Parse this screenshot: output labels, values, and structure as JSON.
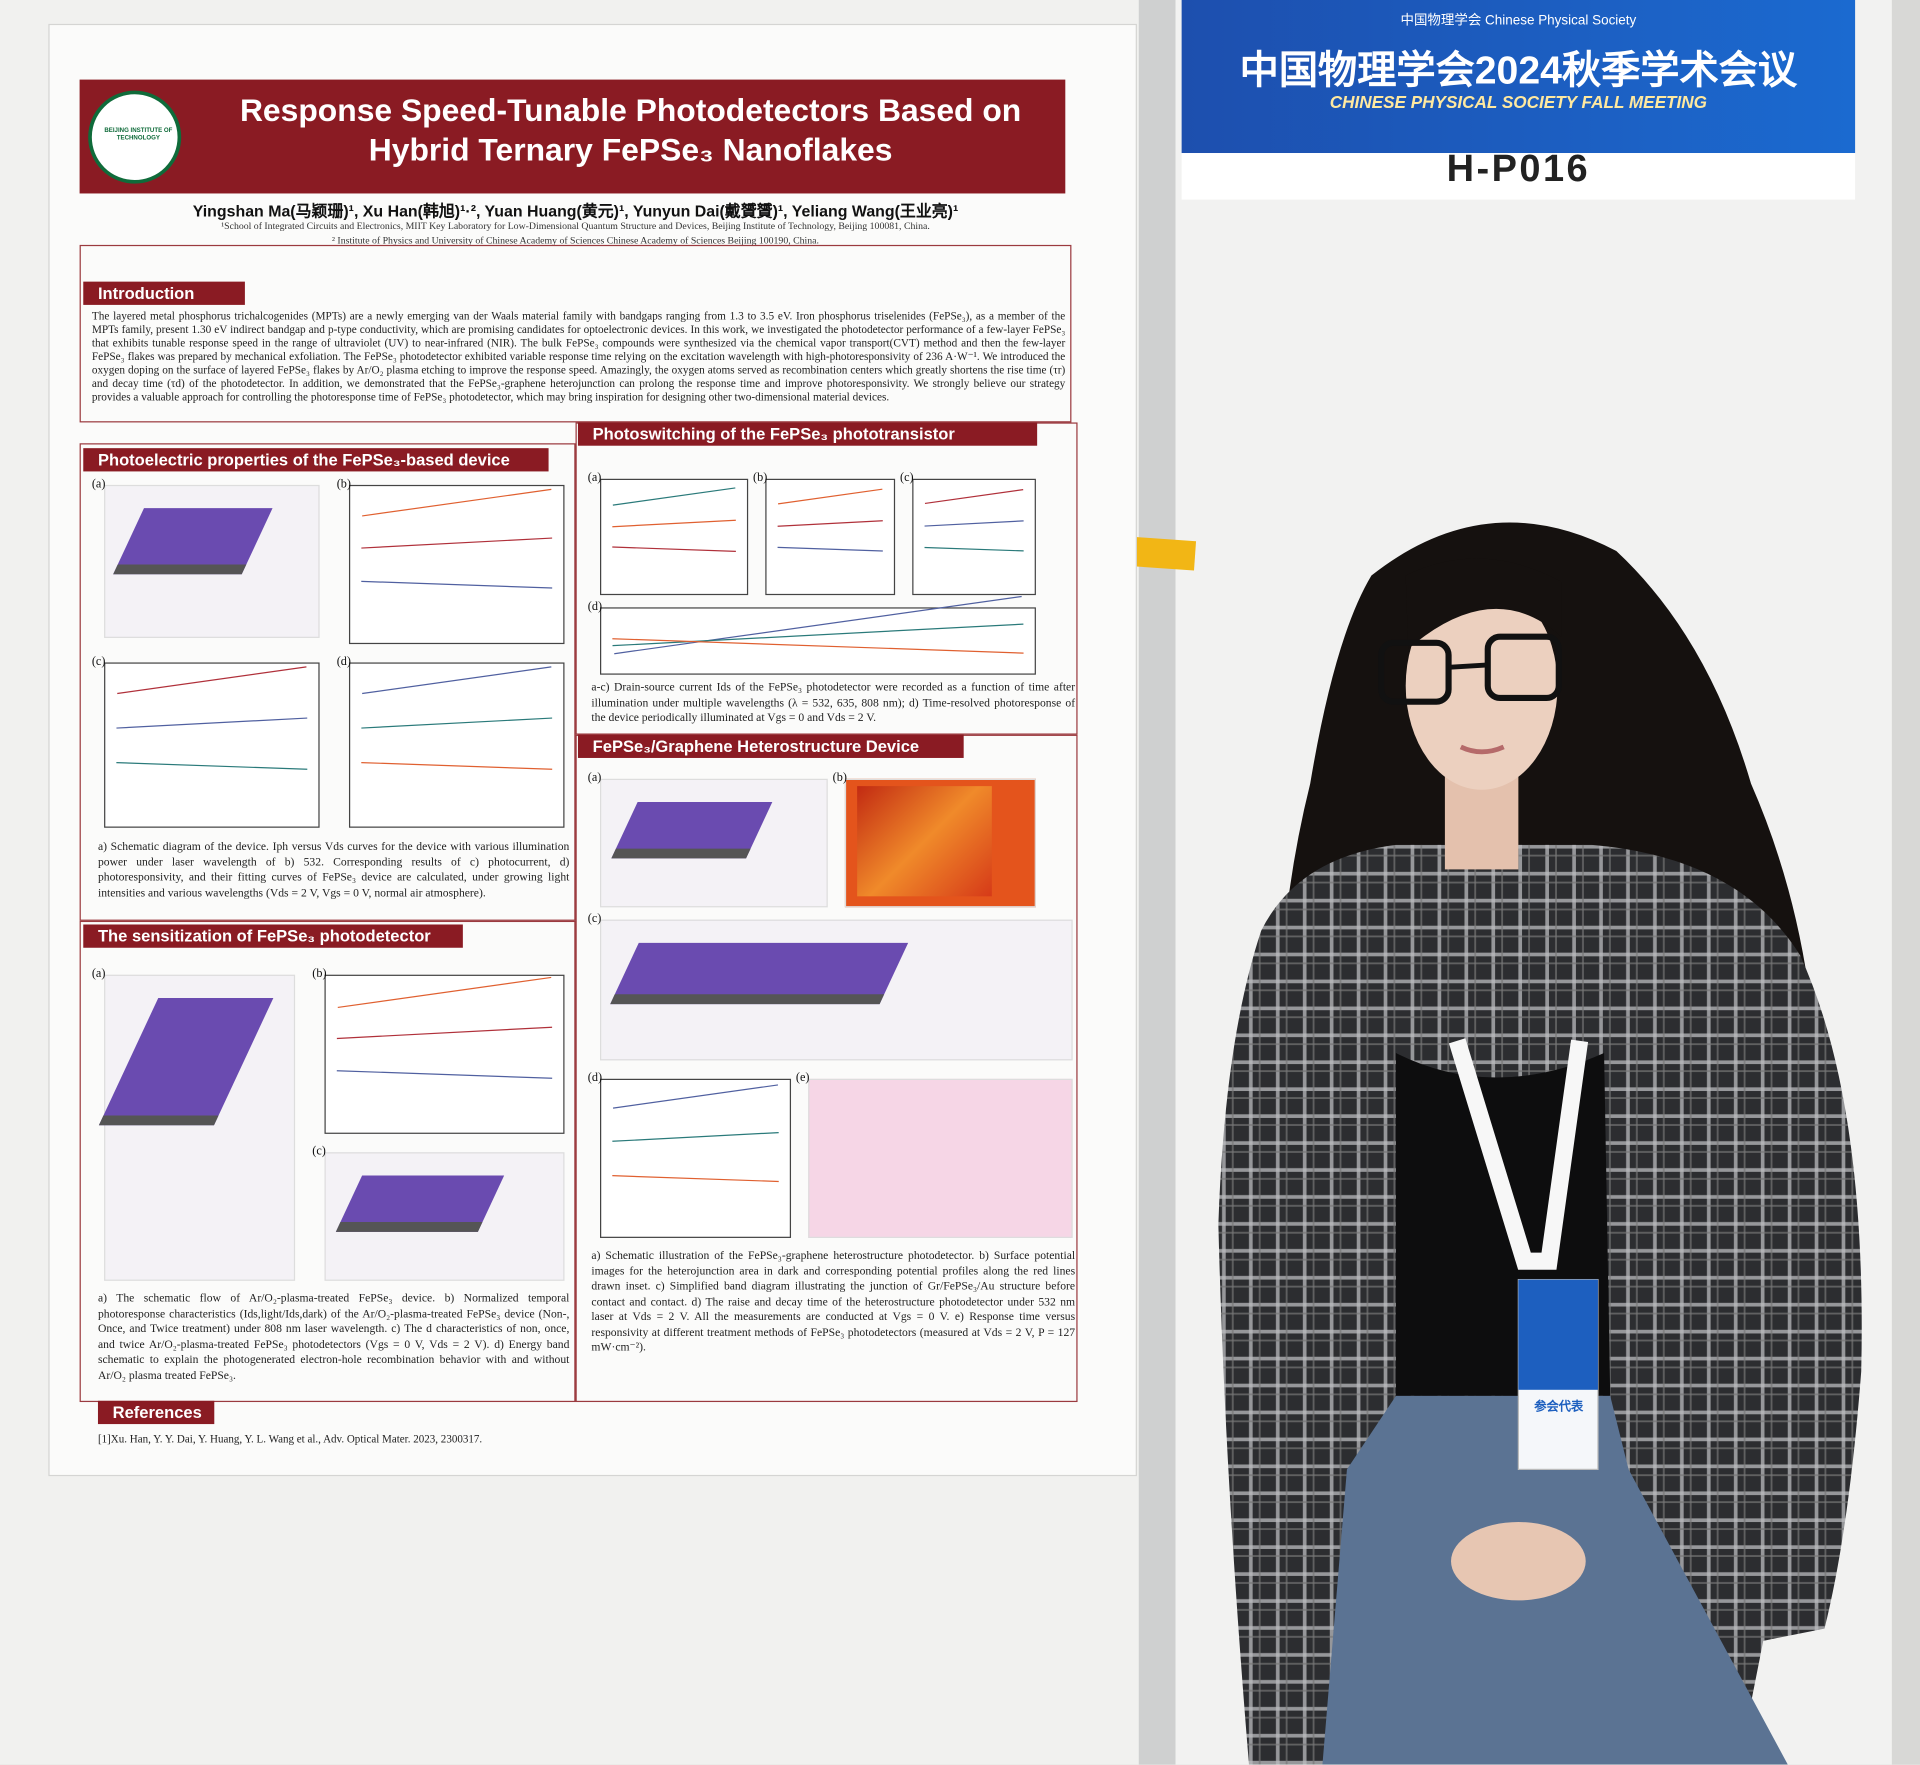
{
  "poster": {
    "title": "Response Speed-Tunable Photodetectors Based on Hybrid Ternary FePSe₃ Nanoflakes",
    "logo_text": "BEIJING INSTITUTE OF TECHNOLOGY",
    "authors": "Yingshan Ma(马颖珊)¹, Xu Han(韩旭)¹·², Yuan Huang(黄元)¹, Yunyun Dai(戴贇贇)¹, Yeliang Wang(王业亮)¹",
    "affiliations": [
      "¹School of Integrated Circuits and Electronics, MIIT Key Laboratory for Low-Dimensional Quantum Structure and Devices, Beijing Institute of Technology, Beijing 100081, China.",
      "² Institute of Physics and University of Chinese Academy of Sciences Chinese Academy of Sciences Beijing 100190, China."
    ],
    "sections": [
      {
        "heading": "Introduction",
        "text": "The layered metal phosphorus trichalcogenides (MPTs) are a newly emerging van der Waals material family with bandgaps ranging from 1.3 to 3.5 eV. Iron phosphorus triselenides (FePSe₃), as a member of the MPTs family, present 1.30 eV indirect bandgap and p-type conductivity, which are promising candidates for optoelectronic devices. In this work, we investigated the photodetector performance of a few-layer FePSe₃ that exhibits tunable response speed in the range of ultraviolet (UV) to near-infrared (NIR). The bulk FePSe₃ compounds were synthesized via the chemical vapor transport(CVT) method and then the few-layer FePSe₃ flakes was prepared by mechanical exfoliation. The FePSe₃ photodetector exhibited variable response time relying on the excitation wavelength with high-photoresponsivity of 236 A·W⁻¹. We introduced the oxygen doping on the surface of layered FePSe₃ flakes by Ar/O₂ plasma etching to improve the response speed. Amazingly, the oxygen atoms served as recombination centers which greatly shortens the rise time (τr) and decay time (τd) of the photodetector. In addition, we demonstrated that the FePSe₃-graphene heterojunction can prolong the response time and improve photoresponsivity. We strongly believe our strategy provides a valuable approach for controlling the photoresponse time of FePSe₃ photodetector, which may bring inspiration for designing other two-dimensional material devices."
      },
      {
        "heading": "Photoelectric properties of the FePSe₃-based device",
        "panels": [
          "(a)",
          "(b)",
          "(c)",
          "(d)"
        ],
        "caption": "a) Schematic diagram of the device. Iph versus Vds curves for the device with various illumination power under laser wavelength of b) 532. Corresponding results of c) photocurrent, d) photoresponsivity, and their fitting curves of FePSe₃ device are calculated, under growing light intensities and various wavelengths (Vds = 2 V, Vgs = 0 V, normal air atmosphere)."
      },
      {
        "heading": "The sensitization of FePSe₃ photodetector",
        "panels": [
          "(a)",
          "(b)",
          "(c)"
        ],
        "caption": "a) The schematic flow of Ar/O₂-plasma-treated FePSe₃ device. b) Normalized temporal photoresponse characteristics (Ids,light/Ids,dark) of the Ar/O₂-plasma-treated FePSe₃ device (Non-, Once, and Twice treatment) under 808 nm laser wavelength. c) The d characteristics of non, once, and twice Ar/O₂-plasma-treated FePSe₃ photodetectors (Vgs = 0 V, Vds = 2 V). d) Energy band schematic to explain the photogenerated electron-hole recombination behavior with and without Ar/O₂ plasma treated FePSe₃."
      },
      {
        "heading": "Photoswitching of the FePSe₃ phototransistor",
        "panels": [
          "(a)",
          "(b)",
          "(c)",
          "(d)"
        ],
        "caption": "a-c) Drain-source current Ids of the FePSe₃ photodetector were recorded as a function of time after illumination under multiple wavelengths (λ = 532, 635, 808 nm); d) Time-resolved photoresponse of the device periodically illuminated at Vgs = 0 and Vds = 2 V."
      },
      {
        "heading": "FePSe₃/Graphene Heterostructure Device",
        "panels": [
          "(a)",
          "(b)",
          "(c)",
          "(d)",
          "(e)"
        ],
        "caption": "a) Schematic illustration of the FePSe₃-graphene heterostructure photodetector. b) Surface potential images for the heterojunction area in dark and corresponding potential profiles along the red lines drawn inset. c) Simplified band diagram illustrating the junction of Gr/FePSe₃/Au structure before contact and contact. d) The raise and decay time of the heterostructure photodetector under 532 nm laser at Vds = 2 V. All the measurements are conducted at Vgs = 0 V. e) Response time versus responsivity at different treatment methods of FePSe₃ photodetectors (measured at Vds = 2 V, P = 127 mW·cm⁻²)."
      },
      {
        "heading": "References",
        "text": "[1]Xu. Han, Y. Y. Dai, Y. Huang, Y. L. Wang et al., Adv. Optical Mater. 2023, 2300317."
      }
    ]
  },
  "sign": {
    "society": "中国物理学会 Chinese Physical Society",
    "title": "中国物理学会2024秋季学术会议",
    "subtitle": "CHINESE PHYSICAL SOCIETY FALL MEETING",
    "board": "H-P016"
  },
  "badge": {
    "text": "参会代表"
  }
}
